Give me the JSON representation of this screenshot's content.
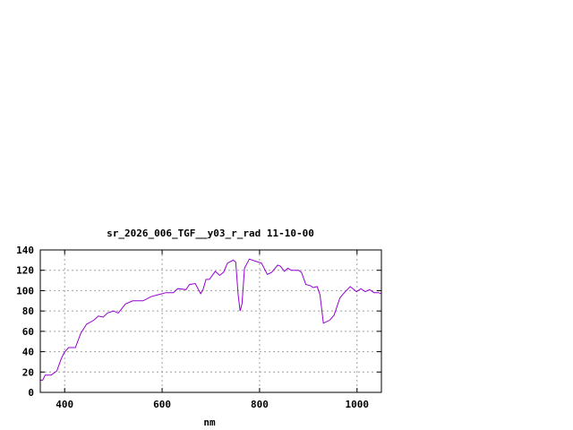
{
  "chart_data": {
    "type": "line",
    "title": "sr_2026_006_TGF__y03_r_rad 11-10-00",
    "xlabel": "nm",
    "ylabel": "",
    "xlim": [
      350,
      1050
    ],
    "ylim": [
      0,
      140
    ],
    "xticks": [
      400,
      600,
      800,
      1000
    ],
    "yticks": [
      0,
      20,
      40,
      60,
      80,
      100,
      120,
      140
    ],
    "grid": true,
    "line_color": "#9400d3",
    "series": [
      {
        "x": [
          350,
          355,
          360,
          372,
          384,
          393,
          399,
          408,
          422,
          433,
          445,
          460,
          469,
          479,
          488,
          500,
          510,
          525,
          540,
          561,
          577,
          592,
          608,
          623,
          632,
          649,
          656,
          668,
          679,
          684,
          690,
          697,
          709,
          718,
          726,
          734,
          746,
          751,
          756,
          760,
          764,
          769,
          779,
          791,
          804,
          816,
          825,
          837,
          843,
          851,
          858,
          865,
          880,
          886,
          895,
          904,
          910,
          918,
          924,
          931,
          944,
          953,
          965,
          974,
          986,
          999,
          1008,
          1017,
          1026,
          1035,
          1044,
          1050
        ],
        "y": [
          12,
          12,
          17,
          17,
          21,
          33,
          39,
          44,
          44,
          58,
          67,
          71,
          75,
          74,
          78,
          80,
          78,
          87,
          90,
          90,
          94,
          96,
          98,
          98,
          102,
          101,
          106,
          107,
          97,
          101,
          111,
          111,
          119,
          115,
          118,
          127,
          130,
          128,
          96,
          80,
          87,
          122,
          131,
          129,
          127,
          116,
          118,
          125,
          124,
          119,
          122,
          120,
          120,
          118,
          106,
          105,
          103,
          104,
          96,
          68,
          71,
          76,
          93,
          98,
          104,
          99,
          102,
          99,
          101,
          98,
          98,
          97
        ]
      }
    ]
  }
}
